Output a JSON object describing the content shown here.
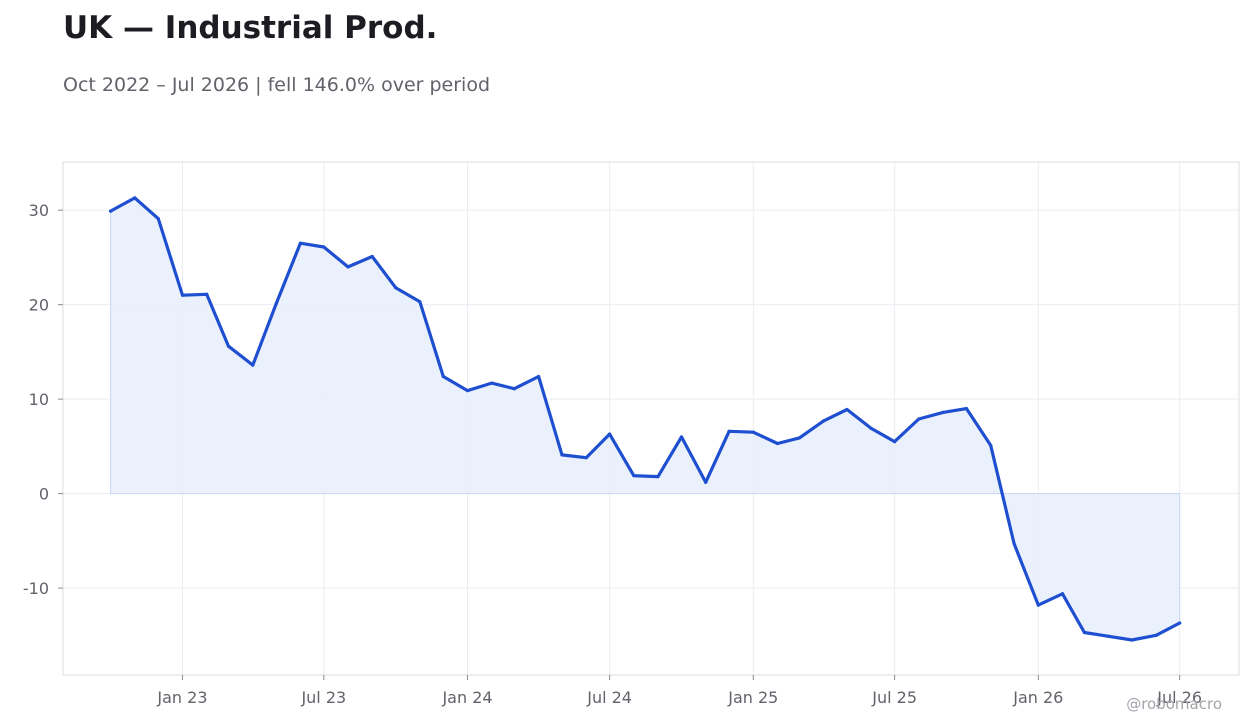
{
  "header": {
    "title": "UK — Industrial Prod.",
    "subtitle": "Oct 2022 – Jul 2026 | fell 146.0% over period"
  },
  "watermark": "@robomacro",
  "colors": {
    "line": "#1f4fd1",
    "fill": "#e8eefc",
    "grid": "#ececf2",
    "frame": "#dcdce2",
    "text": "#62626b"
  },
  "chart_data": {
    "type": "area",
    "title": "UK — Industrial Prod.",
    "subtitle": "Oct 2022 – Jul 2026 | fell 146.0% over period",
    "xlabel": "",
    "ylabel": "",
    "x_range": [
      "2022-08-01",
      "2026-09-15"
    ],
    "ylim": [
      -19.2,
      35.1
    ],
    "grid": true,
    "legend": "none",
    "x_ticks": [
      {
        "date": "2023-01-01",
        "label": "Jan 23"
      },
      {
        "date": "2023-07-01",
        "label": "Jul 23"
      },
      {
        "date": "2024-01-01",
        "label": "Jan 24"
      },
      {
        "date": "2024-07-01",
        "label": "Jul 24"
      },
      {
        "date": "2025-01-01",
        "label": "Jan 25"
      },
      {
        "date": "2025-07-01",
        "label": "Jul 25"
      },
      {
        "date": "2026-01-01",
        "label": "Jan 26"
      },
      {
        "date": "2026-07-01",
        "label": "Jul 26"
      }
    ],
    "y_ticks": [
      {
        "value": 30,
        "label": "30"
      },
      {
        "value": 20,
        "label": "20"
      },
      {
        "value": 10,
        "label": "10"
      },
      {
        "value": 0,
        "label": "0"
      },
      {
        "value": -10,
        "label": "-10"
      }
    ],
    "series": [
      {
        "points": [
          {
            "x": "2022-10-01",
            "y": 29.9
          },
          {
            "x": "2022-11-01",
            "y": 31.3
          },
          {
            "x": "2022-12-01",
            "y": 29.1
          },
          {
            "x": "2023-01-01",
            "y": 21.0
          },
          {
            "x": "2023-02-01",
            "y": 21.1
          },
          {
            "x": "2023-03-01",
            "y": 15.6
          },
          {
            "x": "2023-04-01",
            "y": 13.6
          },
          {
            "x": "2023-05-01",
            "y": 20.1
          },
          {
            "x": "2023-06-01",
            "y": 26.5
          },
          {
            "x": "2023-07-01",
            "y": 26.1
          },
          {
            "x": "2023-08-01",
            "y": 24.0
          },
          {
            "x": "2023-09-01",
            "y": 25.1
          },
          {
            "x": "2023-10-01",
            "y": 21.8
          },
          {
            "x": "2023-11-01",
            "y": 20.3
          },
          {
            "x": "2023-12-01",
            "y": 12.4
          },
          {
            "x": "2024-01-01",
            "y": 10.9
          },
          {
            "x": "2024-02-01",
            "y": 11.7
          },
          {
            "x": "2024-03-01",
            "y": 11.1
          },
          {
            "x": "2024-04-01",
            "y": 12.4
          },
          {
            "x": "2024-05-01",
            "y": 4.1
          },
          {
            "x": "2024-06-01",
            "y": 3.8
          },
          {
            "x": "2024-07-01",
            "y": 6.3
          },
          {
            "x": "2024-08-01",
            "y": 1.9
          },
          {
            "x": "2024-09-01",
            "y": 1.8
          },
          {
            "x": "2024-10-01",
            "y": 6.0
          },
          {
            "x": "2024-11-01",
            "y": 1.2
          },
          {
            "x": "2024-12-01",
            "y": 6.6
          },
          {
            "x": "2025-01-01",
            "y": 6.5
          },
          {
            "x": "2025-02-01",
            "y": 5.3
          },
          {
            "x": "2025-03-01",
            "y": 5.9
          },
          {
            "x": "2025-04-01",
            "y": 7.7
          },
          {
            "x": "2025-05-01",
            "y": 8.9
          },
          {
            "x": "2025-06-01",
            "y": 6.9
          },
          {
            "x": "2025-07-01",
            "y": 5.5
          },
          {
            "x": "2025-08-01",
            "y": 7.9
          },
          {
            "x": "2025-09-01",
            "y": 8.6
          },
          {
            "x": "2025-10-01",
            "y": 9.0
          },
          {
            "x": "2025-11-01",
            "y": 5.1
          },
          {
            "x": "2025-12-01",
            "y": -5.3
          },
          {
            "x": "2026-01-01",
            "y": -11.8
          },
          {
            "x": "2026-02-01",
            "y": -10.6
          },
          {
            "x": "2026-03-01",
            "y": -14.7
          },
          {
            "x": "2026-04-01",
            "y": -15.1
          },
          {
            "x": "2026-05-01",
            "y": -15.5
          },
          {
            "x": "2026-06-01",
            "y": -15.0
          },
          {
            "x": "2026-07-01",
            "y": -13.7
          }
        ]
      }
    ]
  }
}
